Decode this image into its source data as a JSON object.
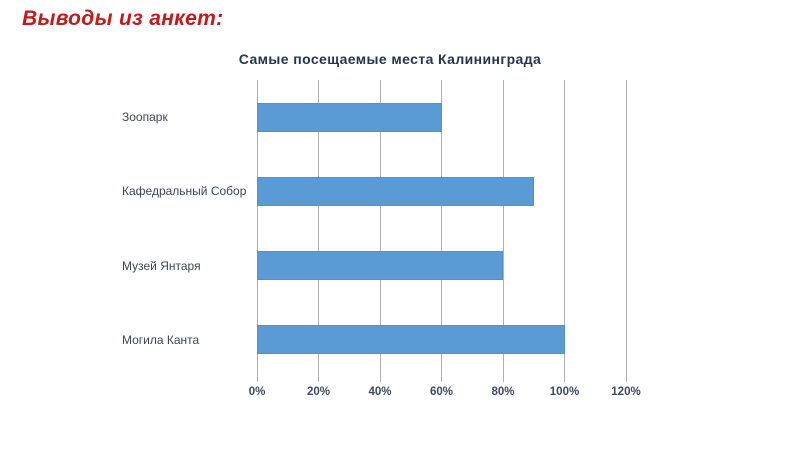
{
  "heading": "Выводы из анкет:",
  "colors": {
    "heading": "#c61a1a",
    "bar": "#5b9bd5",
    "bar-border": "#5191cc",
    "grid": "#b0b0b5",
    "title": "#253450",
    "label": "#3e4557",
    "tick": "#3e4a63"
  },
  "chart_data": {
    "type": "bar",
    "orientation": "horizontal",
    "title": "Самые посещаемые места Калининграда",
    "categories": [
      "Зоопарк",
      "Кафедральный Собор",
      "Музей Янтаря",
      "Могила Канта"
    ],
    "values": [
      60,
      90,
      80,
      100
    ],
    "value_unit": "%",
    "xlabel": "",
    "ylabel": "",
    "xlim": [
      0,
      120
    ],
    "xticks": [
      0,
      20,
      40,
      60,
      80,
      100,
      120
    ],
    "xtick_labels": [
      "0%",
      "20%",
      "40%",
      "60%",
      "80%",
      "100%",
      "120%"
    ],
    "grid": true,
    "legend": false,
    "background": "#ffffff"
  }
}
